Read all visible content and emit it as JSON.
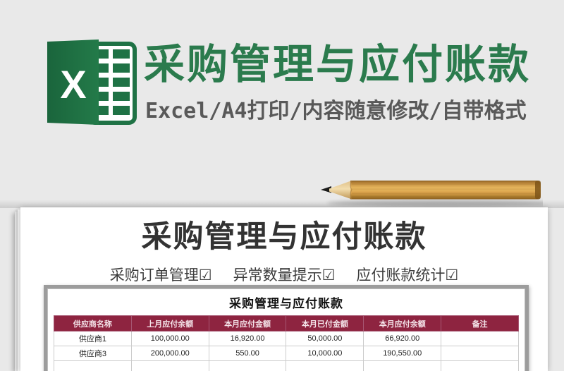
{
  "colors": {
    "page_bg": "#e9e9e9",
    "excel_green": "#1f7245",
    "banner_title_green": "#2b7b4d",
    "subtitle_gray": "#595959",
    "sheet_header_red": "#8e2440"
  },
  "banner": {
    "logo": {
      "letter": "X"
    },
    "title": "采购管理与应付账款",
    "subtitle": "Excel/A4打印/内容随意修改/自带格式"
  },
  "icons": {
    "pencil": "pencil-image",
    "checkbox_checked": "☑"
  },
  "poster": {
    "title": "采购管理与应付账款",
    "features": [
      "采购订单管理☑",
      "异常数量提示☑",
      "应付账款统计☑"
    ],
    "sheet": {
      "title": "采购管理与应付账款",
      "columns": [
        "供应商名称",
        "上月应付余额",
        "本月应付金额",
        "本月已付金额",
        "本月应付余额",
        "备注"
      ],
      "rows": [
        [
          "供应商1",
          "100,000.00",
          "16,920.00",
          "50,000.00",
          "66,920.00",
          ""
        ],
        [
          "供应商3",
          "200,000.00",
          "550.00",
          "10,000.00",
          "190,550.00",
          ""
        ],
        [
          "",
          "",
          "",
          "",
          "",
          ""
        ]
      ]
    }
  }
}
